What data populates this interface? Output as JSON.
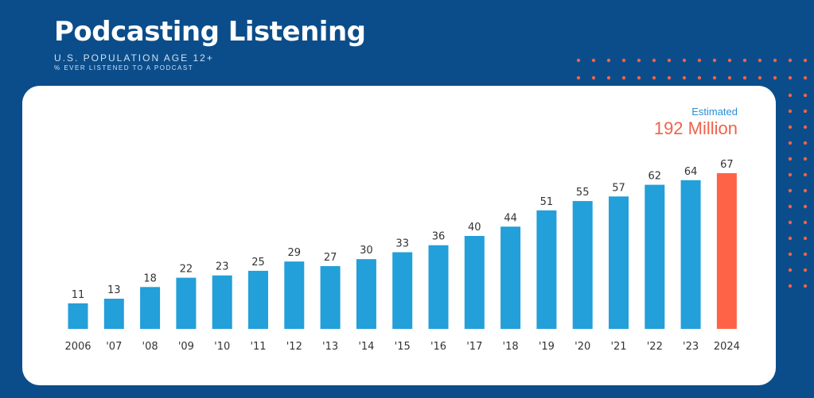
{
  "header": {
    "title": "Podcasting Listening",
    "subtitle": "U.S. POPULATION AGE 12+",
    "subsubtitle": "% EVER LISTENED TO A PODCAST"
  },
  "estimate": {
    "label": "Estimated",
    "value": "192 Million"
  },
  "colors": {
    "background": "#0b4d8a",
    "bar": "#239fd9",
    "highlight": "#ff6347",
    "dots": "#f0624a"
  },
  "chart_data": {
    "type": "bar",
    "title": "Podcasting Listening",
    "xlabel": "",
    "ylabel": "% ever listened to a podcast",
    "categories": [
      "2006",
      "'07",
      "'08",
      "'09",
      "'10",
      "'11",
      "'12",
      "'13",
      "'14",
      "'15",
      "'16",
      "'17",
      "'18",
      "'19",
      "'20",
      "'21",
      "'22",
      "'23",
      "2024"
    ],
    "values": [
      11,
      13,
      18,
      22,
      23,
      25,
      29,
      27,
      30,
      33,
      36,
      40,
      44,
      51,
      55,
      57,
      62,
      64,
      67
    ],
    "highlight_index": 18,
    "ylim": [
      0,
      67
    ],
    "grid": false
  }
}
